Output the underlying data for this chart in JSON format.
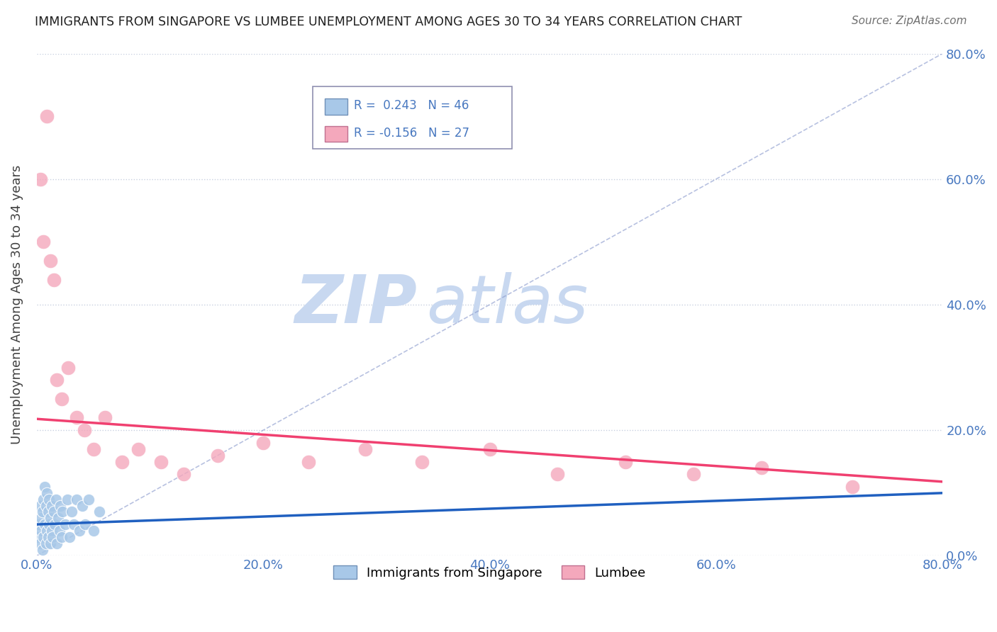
{
  "title": "IMMIGRANTS FROM SINGAPORE VS LUMBEE UNEMPLOYMENT AMONG AGES 30 TO 34 YEARS CORRELATION CHART",
  "source": "Source: ZipAtlas.com",
  "ylabel": "Unemployment Among Ages 30 to 34 years",
  "xlim": [
    0,
    0.8
  ],
  "ylim": [
    0,
    0.8
  ],
  "xticks": [
    0.0,
    0.2,
    0.4,
    0.6,
    0.8
  ],
  "yticks": [
    0.0,
    0.2,
    0.4,
    0.6,
    0.8
  ],
  "xticklabels": [
    "0.0%",
    "20.0%",
    "40.0%",
    "60.0%",
    "80.0%"
  ],
  "yticklabels": [
    "0.0%",
    "20.0%",
    "40.0%",
    "60.0%",
    "80.0%"
  ],
  "blue_R": 0.243,
  "blue_N": 46,
  "pink_R": -0.156,
  "pink_N": 27,
  "blue_color": "#a8c8e8",
  "pink_color": "#f4a8bc",
  "blue_line_color": "#2060c0",
  "pink_line_color": "#f04070",
  "diagonal_color": "#8898cc",
  "watermark_zip_color": "#c8d8f0",
  "watermark_atlas_color": "#c8d8f0",
  "blue_scatter_x": [
    0.001,
    0.002,
    0.003,
    0.003,
    0.004,
    0.004,
    0.005,
    0.005,
    0.006,
    0.006,
    0.007,
    0.007,
    0.008,
    0.008,
    0.009,
    0.009,
    0.01,
    0.01,
    0.011,
    0.011,
    0.012,
    0.012,
    0.013,
    0.013,
    0.014,
    0.015,
    0.016,
    0.017,
    0.018,
    0.019,
    0.02,
    0.021,
    0.022,
    0.023,
    0.025,
    0.027,
    0.029,
    0.031,
    0.033,
    0.035,
    0.038,
    0.04,
    0.043,
    0.046,
    0.05,
    0.055
  ],
  "blue_scatter_y": [
    0.03,
    0.05,
    0.02,
    0.08,
    0.04,
    0.06,
    0.01,
    0.07,
    0.03,
    0.09,
    0.05,
    0.11,
    0.02,
    0.08,
    0.04,
    0.1,
    0.03,
    0.07,
    0.05,
    0.09,
    0.02,
    0.06,
    0.04,
    0.08,
    0.03,
    0.07,
    0.05,
    0.09,
    0.02,
    0.06,
    0.04,
    0.08,
    0.03,
    0.07,
    0.05,
    0.09,
    0.03,
    0.07,
    0.05,
    0.09,
    0.04,
    0.08,
    0.05,
    0.09,
    0.04,
    0.07
  ],
  "pink_scatter_x": [
    0.003,
    0.006,
    0.009,
    0.012,
    0.015,
    0.018,
    0.022,
    0.028,
    0.035,
    0.042,
    0.05,
    0.06,
    0.075,
    0.09,
    0.11,
    0.13,
    0.16,
    0.2,
    0.24,
    0.29,
    0.34,
    0.4,
    0.46,
    0.52,
    0.58,
    0.64,
    0.72
  ],
  "pink_scatter_y": [
    0.6,
    0.5,
    0.7,
    0.47,
    0.44,
    0.28,
    0.25,
    0.3,
    0.22,
    0.2,
    0.17,
    0.22,
    0.15,
    0.17,
    0.15,
    0.13,
    0.16,
    0.18,
    0.15,
    0.17,
    0.15,
    0.17,
    0.13,
    0.15,
    0.13,
    0.14,
    0.11
  ],
  "pink_line_start_y": 0.218,
  "pink_line_end_y": 0.118
}
